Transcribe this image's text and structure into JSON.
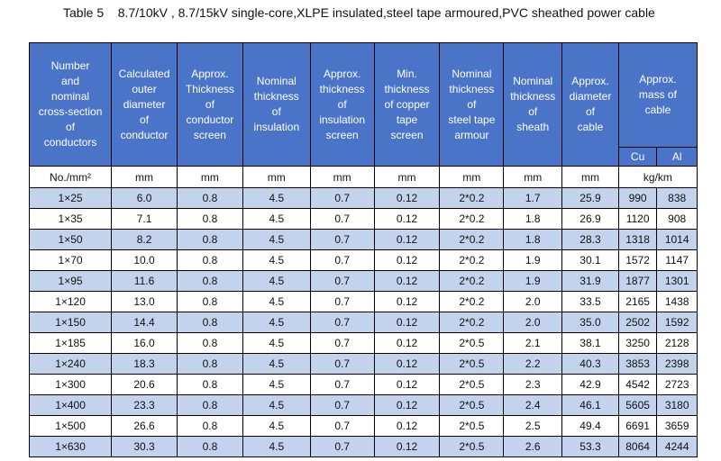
{
  "caption": "Table 5    8.7/10kV , 8.7/15kV single-core,XLPE insulated,steel tape armoured,PVC sheathed power cable",
  "headers": [
    "Number\nand\nnominal\ncross-section\nof\nconductors",
    "Calculated\nouter\ndiameter\nof\nconductor",
    "Approx.\nThickness\nof\nconductor\nscreen",
    "Nominal\nthickness\nof\ninsulation",
    "Approx.\nthickness\nof\ninsulation\nscreen",
    "Min.\nthickness\nof copper\ntape\nscreen",
    "Nominal\nthickness\nof\nsteel tape\narmour",
    "Nominal\nthickness\nof\nsheath",
    "Approx.\ndiameter\nof\ncable",
    "Approx.\nmass of\ncable"
  ],
  "mass_subheaders": [
    "Cu",
    "Al"
  ],
  "units": [
    "No./mm²",
    "mm",
    "mm",
    "mm",
    "mm",
    "mm",
    "mm",
    "mm",
    "mm",
    "kg/km"
  ],
  "rows": [
    [
      "1×25",
      "6.0",
      "0.8",
      "4.5",
      "0.7",
      "0.12",
      "2*0.2",
      "1.7",
      "25.9",
      "990",
      "838"
    ],
    [
      "1×35",
      "7.1",
      "0.8",
      "4.5",
      "0.7",
      "0.12",
      "2*0.2",
      "1.8",
      "26.9",
      "1120",
      "908"
    ],
    [
      "1×50",
      "8.2",
      "0.8",
      "4.5",
      "0.7",
      "0.12",
      "2*0.2",
      "1.8",
      "28.3",
      "1318",
      "1014"
    ],
    [
      "1×70",
      "10.0",
      "0.8",
      "4.5",
      "0.7",
      "0.12",
      "2*0.2",
      "1.9",
      "30.1",
      "1572",
      "1147"
    ],
    [
      "1×95",
      "11.6",
      "0.8",
      "4.5",
      "0.7",
      "0.12",
      "2*0.2",
      "1.9",
      "31.9",
      "1877",
      "1301"
    ],
    [
      "1×120",
      "13.0",
      "0.8",
      "4.5",
      "0.7",
      "0.12",
      "2*0.2",
      "2.0",
      "33.5",
      "2165",
      "1438"
    ],
    [
      "1×150",
      "14.4",
      "0.8",
      "4.5",
      "0.7",
      "0.12",
      "2*0.2",
      "2.0",
      "35.0",
      "2502",
      "1592"
    ],
    [
      "1×185",
      "16.0",
      "0.8",
      "4.5",
      "0.7",
      "0.12",
      "2*0.5",
      "2.1",
      "38.1",
      "3250",
      "2128"
    ],
    [
      "1×240",
      "18.3",
      "0.8",
      "4.5",
      "0.7",
      "0.12",
      "2*0.5",
      "2.2",
      "40.3",
      "3853",
      "2398"
    ],
    [
      "1×300",
      "20.6",
      "0.8",
      "4.5",
      "0.7",
      "0.12",
      "2*0.5",
      "2.3",
      "42.9",
      "4542",
      "2723"
    ],
    [
      "1×400",
      "23.3",
      "0.8",
      "4.5",
      "0.7",
      "0.12",
      "2*0.5",
      "2.4",
      "46.1",
      "5605",
      "3180"
    ],
    [
      "1×500",
      "26.6",
      "0.8",
      "4.5",
      "0.7",
      "0.12",
      "2*0.5",
      "2.5",
      "49.4",
      "6691",
      "3659"
    ],
    [
      "1×630",
      "30.3",
      "0.8",
      "4.5",
      "0.7",
      "0.12",
      "2*0.5",
      "2.6",
      "53.3",
      "8064",
      "4244"
    ]
  ],
  "colors": {
    "header_bg": "#4a74c8",
    "header_text": "#ffffff",
    "stripe": "#c3d3ee"
  }
}
